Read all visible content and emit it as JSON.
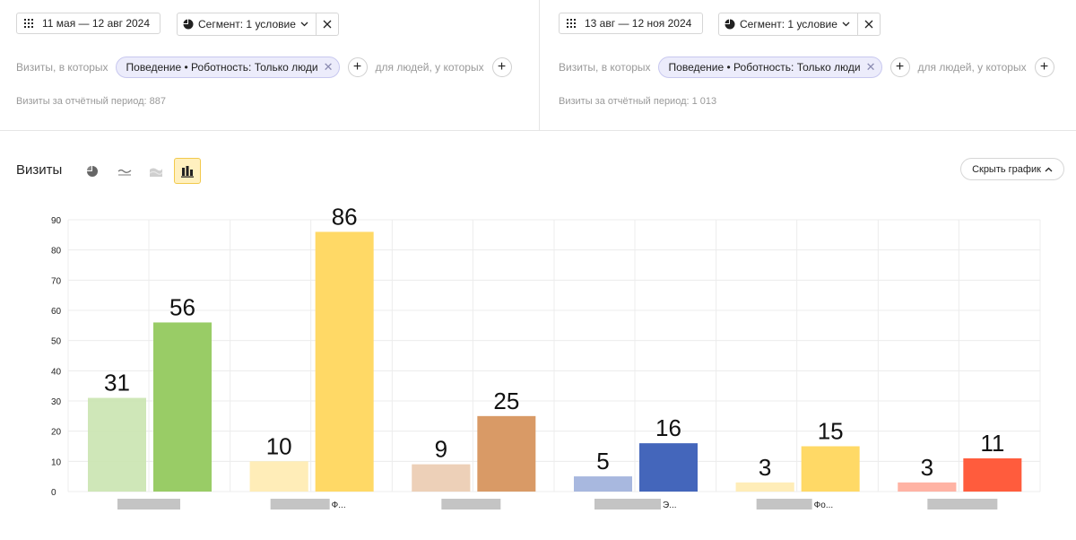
{
  "panels": [
    {
      "date_range": "11 мая — 12 авг 2024",
      "segment_label": "Сегмент: 1 условие",
      "condition_prefix": "Визиты, в которых",
      "condition_chip": "Поведение • Роботность: Только люди",
      "condition_suffix": "для людей, у которых",
      "total": "Визиты за отчётный период: 887"
    },
    {
      "date_range": "13 авг — 12 ноя 2024",
      "segment_label": "Сегмент: 1 условие",
      "condition_prefix": "Визиты, в которых",
      "condition_chip": "Поведение • Роботность: Только люди",
      "condition_suffix": "для людей, у которых",
      "total": "Визиты за отчётный период: 1 013"
    }
  ],
  "chart_header": {
    "title": "Визиты",
    "hide_chart_label": "Скрыть график",
    "views": [
      "pie-chart-icon",
      "line-chart-icon",
      "area-chart-icon",
      "bar-chart-icon"
    ],
    "active_view": "bar-chart-icon"
  },
  "chart_data": {
    "type": "bar",
    "categories": [
      "",
      "Ф...",
      "",
      "Э...",
      "Фо...",
      ""
    ],
    "series": [
      {
        "values": [
          31,
          10,
          9,
          5,
          3,
          3
        ],
        "style": "hatched"
      },
      {
        "values": [
          56,
          86,
          25,
          16,
          15,
          11
        ],
        "style": "solid"
      }
    ],
    "colors": [
      "#99cc66",
      "#ffd966",
      "#d99a66",
      "#4466bb",
      "#ffd966",
      "#ff5c3d"
    ],
    "ylim": [
      0,
      90
    ],
    "yticks": [
      0,
      10,
      20,
      30,
      40,
      50,
      60,
      70,
      80,
      90
    ],
    "grid": true,
    "xlabel": "",
    "ylabel": ""
  }
}
